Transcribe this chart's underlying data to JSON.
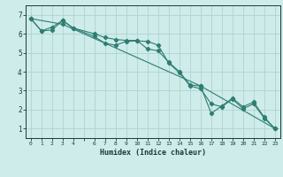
{
  "title": "",
  "xlabel": "Humidex (Indice chaleur)",
  "ylabel": "",
  "background_color": "#ceecea",
  "grid_color": "#aed4d0",
  "line_color": "#2e7d72",
  "xlim": [
    -0.5,
    23.5
  ],
  "ylim": [
    0.5,
    7.5
  ],
  "ytick_values": [
    1,
    2,
    3,
    4,
    5,
    6,
    7
  ],
  "series1_x": [
    0,
    1,
    2,
    3,
    4,
    6,
    7,
    8,
    9,
    10,
    11,
    12,
    13,
    14,
    15,
    16,
    17,
    18,
    19,
    20,
    21,
    22,
    23
  ],
  "series1_y": [
    6.8,
    6.15,
    6.35,
    6.7,
    6.3,
    6.0,
    5.8,
    5.7,
    5.65,
    5.65,
    5.2,
    5.1,
    4.5,
    4.0,
    3.3,
    3.25,
    1.8,
    2.2,
    2.6,
    2.15,
    2.4,
    1.6,
    1.0
  ],
  "series2_x": [
    0,
    1,
    2,
    3,
    4,
    6,
    7,
    8,
    9,
    10,
    11,
    12,
    13,
    14,
    15,
    16,
    17,
    18,
    19,
    20,
    21,
    22,
    23
  ],
  "series2_y": [
    6.8,
    6.15,
    6.2,
    6.7,
    6.3,
    5.85,
    5.5,
    5.4,
    5.6,
    5.62,
    5.6,
    5.4,
    4.45,
    3.95,
    3.25,
    3.1,
    2.3,
    2.15,
    2.55,
    2.05,
    2.3,
    1.55,
    1.0
  ],
  "series3_x": [
    0,
    3,
    16,
    23
  ],
  "series3_y": [
    6.8,
    6.5,
    3.25,
    1.0
  ]
}
